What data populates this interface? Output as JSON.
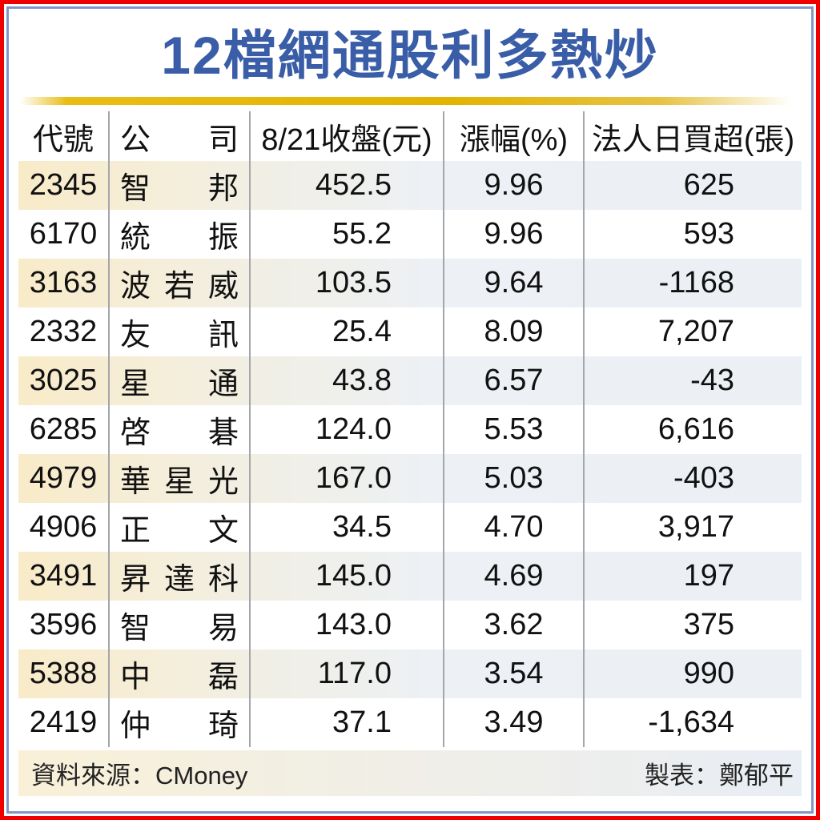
{
  "title": "12檔網通股利多熱炒",
  "colors": {
    "title_blue": "#3a5da8",
    "frame_red": "#ee0000",
    "frame_steel_blue": "#8298c3",
    "gold_bar": "#e2b400",
    "shaded_row_left_cream": "#f8ebc8",
    "shaded_row_right_gray": "#ecf0f5",
    "separator_gray": "#a3a7ab"
  },
  "table": {
    "headers": [
      "代號",
      "公司",
      "8/21收盤(元)",
      "漲幅(%)",
      "法人日買超(張)"
    ],
    "rows": [
      {
        "code": "2345",
        "company": "智邦",
        "close": "452.5",
        "change": "9.96",
        "net": "625"
      },
      {
        "code": "6170",
        "company": "統振",
        "close": "55.2",
        "change": "9.96",
        "net": "593"
      },
      {
        "code": "3163",
        "company": "波若威",
        "close": "103.5",
        "change": "9.64",
        "net": "-1168"
      },
      {
        "code": "2332",
        "company": "友訊",
        "close": "25.4",
        "change": "8.09",
        "net": "7,207"
      },
      {
        "code": "3025",
        "company": "星通",
        "close": "43.8",
        "change": "6.57",
        "net": "-43"
      },
      {
        "code": "6285",
        "company": "啓碁",
        "close": "124.0",
        "change": "5.53",
        "net": "6,616"
      },
      {
        "code": "4979",
        "company": "華星光",
        "close": "167.0",
        "change": "5.03",
        "net": "-403"
      },
      {
        "code": "4906",
        "company": "正文",
        "close": "34.5",
        "change": "4.70",
        "net": "3,917"
      },
      {
        "code": "3491",
        "company": "昇達科",
        "close": "145.0",
        "change": "4.69",
        "net": "197"
      },
      {
        "code": "3596",
        "company": "智易",
        "close": "143.0",
        "change": "3.62",
        "net": "375"
      },
      {
        "code": "5388",
        "company": "中磊",
        "close": "117.0",
        "change": "3.54",
        "net": "990"
      },
      {
        "code": "2419",
        "company": "仲琦",
        "close": "37.1",
        "change": "3.49",
        "net": "-1,634"
      }
    ]
  },
  "footer": {
    "source": "資料來源：CMoney",
    "credit": "製表：鄭郁平"
  },
  "chart_data": {
    "type": "table",
    "title": "12檔網通股利多熱炒",
    "columns": [
      "代號",
      "公司",
      "8/21收盤(元)",
      "漲幅(%)",
      "法人日買超(張)"
    ],
    "rows": [
      [
        2345,
        "智邦",
        452.5,
        9.96,
        625
      ],
      [
        6170,
        "統振",
        55.2,
        9.96,
        593
      ],
      [
        3163,
        "波若威",
        103.5,
        9.64,
        -1168
      ],
      [
        2332,
        "友訊",
        25.4,
        8.09,
        7207
      ],
      [
        3025,
        "星通",
        43.8,
        6.57,
        -43
      ],
      [
        6285,
        "啓碁",
        124.0,
        5.53,
        6616
      ],
      [
        4979,
        "華星光",
        167.0,
        5.03,
        -403
      ],
      [
        4906,
        "正文",
        34.5,
        4.7,
        3917
      ],
      [
        3491,
        "昇達科",
        145.0,
        4.69,
        197
      ],
      [
        3596,
        "智易",
        143.0,
        3.62,
        375
      ],
      [
        5388,
        "中磊",
        117.0,
        3.54,
        990
      ],
      [
        2419,
        "仲琦",
        37.1,
        3.49,
        -1634
      ]
    ]
  }
}
